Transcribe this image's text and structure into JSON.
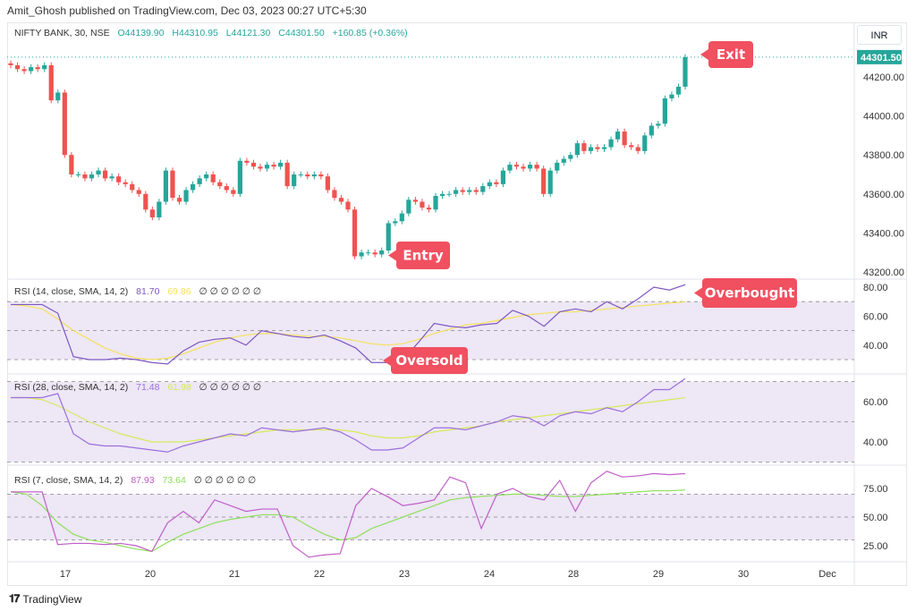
{
  "header": {
    "published": "Amit_Ghosh published on TradingView.com, Dec 03, 2023 00:27 UTC+5:30"
  },
  "symbol": {
    "name": "NIFTY BANK, 30, NSE",
    "open": "O44139.90",
    "high": "H44310.95",
    "low": "L44121.30",
    "close": "C44301.50",
    "change": "+160.85 (+0.36%)"
  },
  "currency": "INR",
  "last_price_label": "44301.50",
  "colors": {
    "up": "#26a69a",
    "down": "#ef5350",
    "rsi": "#7e57c2",
    "signal": "#f0e65a",
    "annotation": "#f05060",
    "band": "#ede7f6"
  },
  "annotations": {
    "exit": "Exit",
    "entry": "Entry",
    "oversold": "Oversold",
    "overbought": "Overbought"
  },
  "indicators": [
    {
      "label": "RSI (14, close, SMA, 14, 2)",
      "value": "81.70",
      "signal": "69.86",
      "zeros": "∅ ∅ ∅ ∅ ∅ ∅",
      "ticks": [
        "80.00",
        "60.00",
        "40.00"
      ],
      "valcolor": "#7e57c2",
      "sigcolor": "#f5e25a"
    },
    {
      "label": "RSI (28, close, SMA, 14, 2)",
      "value": "71.48",
      "signal": "61.98",
      "zeros": "∅ ∅ ∅ ∅ ∅ ∅",
      "ticks": [
        "60.00",
        "40.00"
      ],
      "valcolor": "#9c6fdc",
      "sigcolor": "#d7ea5a"
    },
    {
      "label": "RSI (7, close, SMA, 14, 2)",
      "value": "87.93",
      "signal": "73.64",
      "zeros": "∅ ∅ ∅ ∅ ∅ ∅",
      "ticks": [
        "75.00",
        "50.00",
        "25.00"
      ],
      "valcolor": "#c05ec8",
      "sigcolor": "#8ee05a"
    }
  ],
  "price_axis": [
    "44200.00",
    "44000.00",
    "43800.00",
    "43600.00",
    "43400.00",
    "43200.00"
  ],
  "time_axis": [
    "17",
    "20",
    "21",
    "22",
    "23",
    "24",
    "28",
    "29",
    "30",
    "Dec"
  ],
  "footer": {
    "brand": "TradingView"
  },
  "chart_data": {
    "type": "candlestick",
    "title": "NIFTY BANK, 30, NSE",
    "ylim": [
      43150,
      44400
    ],
    "closes": [
      44260,
      44240,
      44230,
      44250,
      44240,
      44260,
      44080,
      44120,
      43800,
      43700,
      43700,
      43680,
      43700,
      43720,
      43680,
      43690,
      43660,
      43650,
      43620,
      43600,
      43520,
      43480,
      43560,
      43720,
      43580,
      43560,
      43620,
      43650,
      43680,
      43700,
      43660,
      43640,
      43620,
      43600,
      43770,
      43760,
      43740,
      43730,
      43750,
      43740,
      43760,
      43640,
      43700,
      43700,
      43690,
      43700,
      43690,
      43620,
      43580,
      43560,
      43520,
      43280,
      43300,
      43300,
      43290,
      43310,
      43450,
      43460,
      43500,
      43570,
      43560,
      43530,
      43520,
      43590,
      43600,
      43600,
      43620,
      43610,
      43620,
      43610,
      43640,
      43660,
      43650,
      43720,
      43750,
      43740,
      43730,
      43750,
      43730,
      43600,
      43720,
      43760,
      43780,
      43800,
      43860,
      43820,
      43840,
      43830,
      43840,
      43880,
      43920,
      43850,
      43840,
      43820,
      43900,
      43950,
      43960,
      44090,
      44110,
      44150,
      44301.5
    ],
    "rsi14": [
      68,
      68,
      68,
      62,
      32,
      30,
      30,
      31,
      30,
      28,
      27,
      36,
      42,
      44,
      45,
      40,
      50,
      48,
      46,
      45,
      47,
      43,
      38,
      28,
      28,
      30,
      42,
      55,
      53,
      52,
      54,
      55,
      64,
      60,
      53,
      63,
      65,
      63,
      70,
      65,
      72,
      80,
      78,
      81.7
    ],
    "rsi14_signal": [
      68,
      67,
      65,
      58,
      50,
      44,
      38,
      34,
      31,
      30,
      31,
      34,
      38,
      42,
      45,
      47,
      48,
      48,
      47,
      46,
      46,
      45,
      43,
      41,
      40,
      41,
      44,
      48,
      51,
      54,
      55,
      57,
      59,
      61,
      62,
      63,
      63,
      64,
      65,
      66,
      67,
      68,
      69,
      69.86
    ],
    "rsi28": [
      62,
      62,
      62,
      64,
      44,
      39,
      38,
      38,
      37,
      36,
      35,
      38,
      40,
      42,
      44,
      43,
      47,
      46,
      45,
      46,
      47,
      45,
      41,
      36,
      36,
      37,
      42,
      47,
      47,
      46,
      48,
      50,
      53,
      52,
      48,
      53,
      55,
      54,
      57,
      55,
      60,
      66,
      66,
      71.48
    ],
    "rsi28_signal": [
      62,
      62,
      61,
      58,
      54,
      50,
      47,
      44,
      42,
      40,
      40,
      40,
      41,
      42,
      43,
      44,
      45,
      46,
      46,
      46,
      46,
      46,
      45,
      43,
      42,
      42,
      43,
      45,
      46,
      47,
      48,
      50,
      51,
      52,
      53,
      54,
      55,
      56,
      57,
      58,
      59,
      60,
      61,
      61.98
    ],
    "rsi7": [
      72,
      72,
      72,
      26,
      27,
      27,
      26,
      27,
      25,
      20,
      45,
      55,
      45,
      65,
      60,
      55,
      57,
      57,
      25,
      15,
      17,
      18,
      60,
      75,
      68,
      60,
      62,
      65,
      85,
      80,
      40,
      70,
      75,
      68,
      65,
      82,
      55,
      80,
      90,
      85,
      86,
      88,
      87,
      87.93
    ],
    "rsi7_signal": [
      72,
      70,
      60,
      45,
      35,
      30,
      28,
      25,
      22,
      20,
      28,
      35,
      40,
      45,
      48,
      50,
      52,
      52,
      50,
      42,
      35,
      30,
      32,
      40,
      45,
      50,
      55,
      60,
      65,
      67,
      68,
      69,
      70,
      70,
      69,
      68,
      68,
      69,
      70,
      71,
      72,
      73,
      73,
      73.64
    ],
    "rsi_bands": [
      30,
      50,
      70
    ]
  }
}
